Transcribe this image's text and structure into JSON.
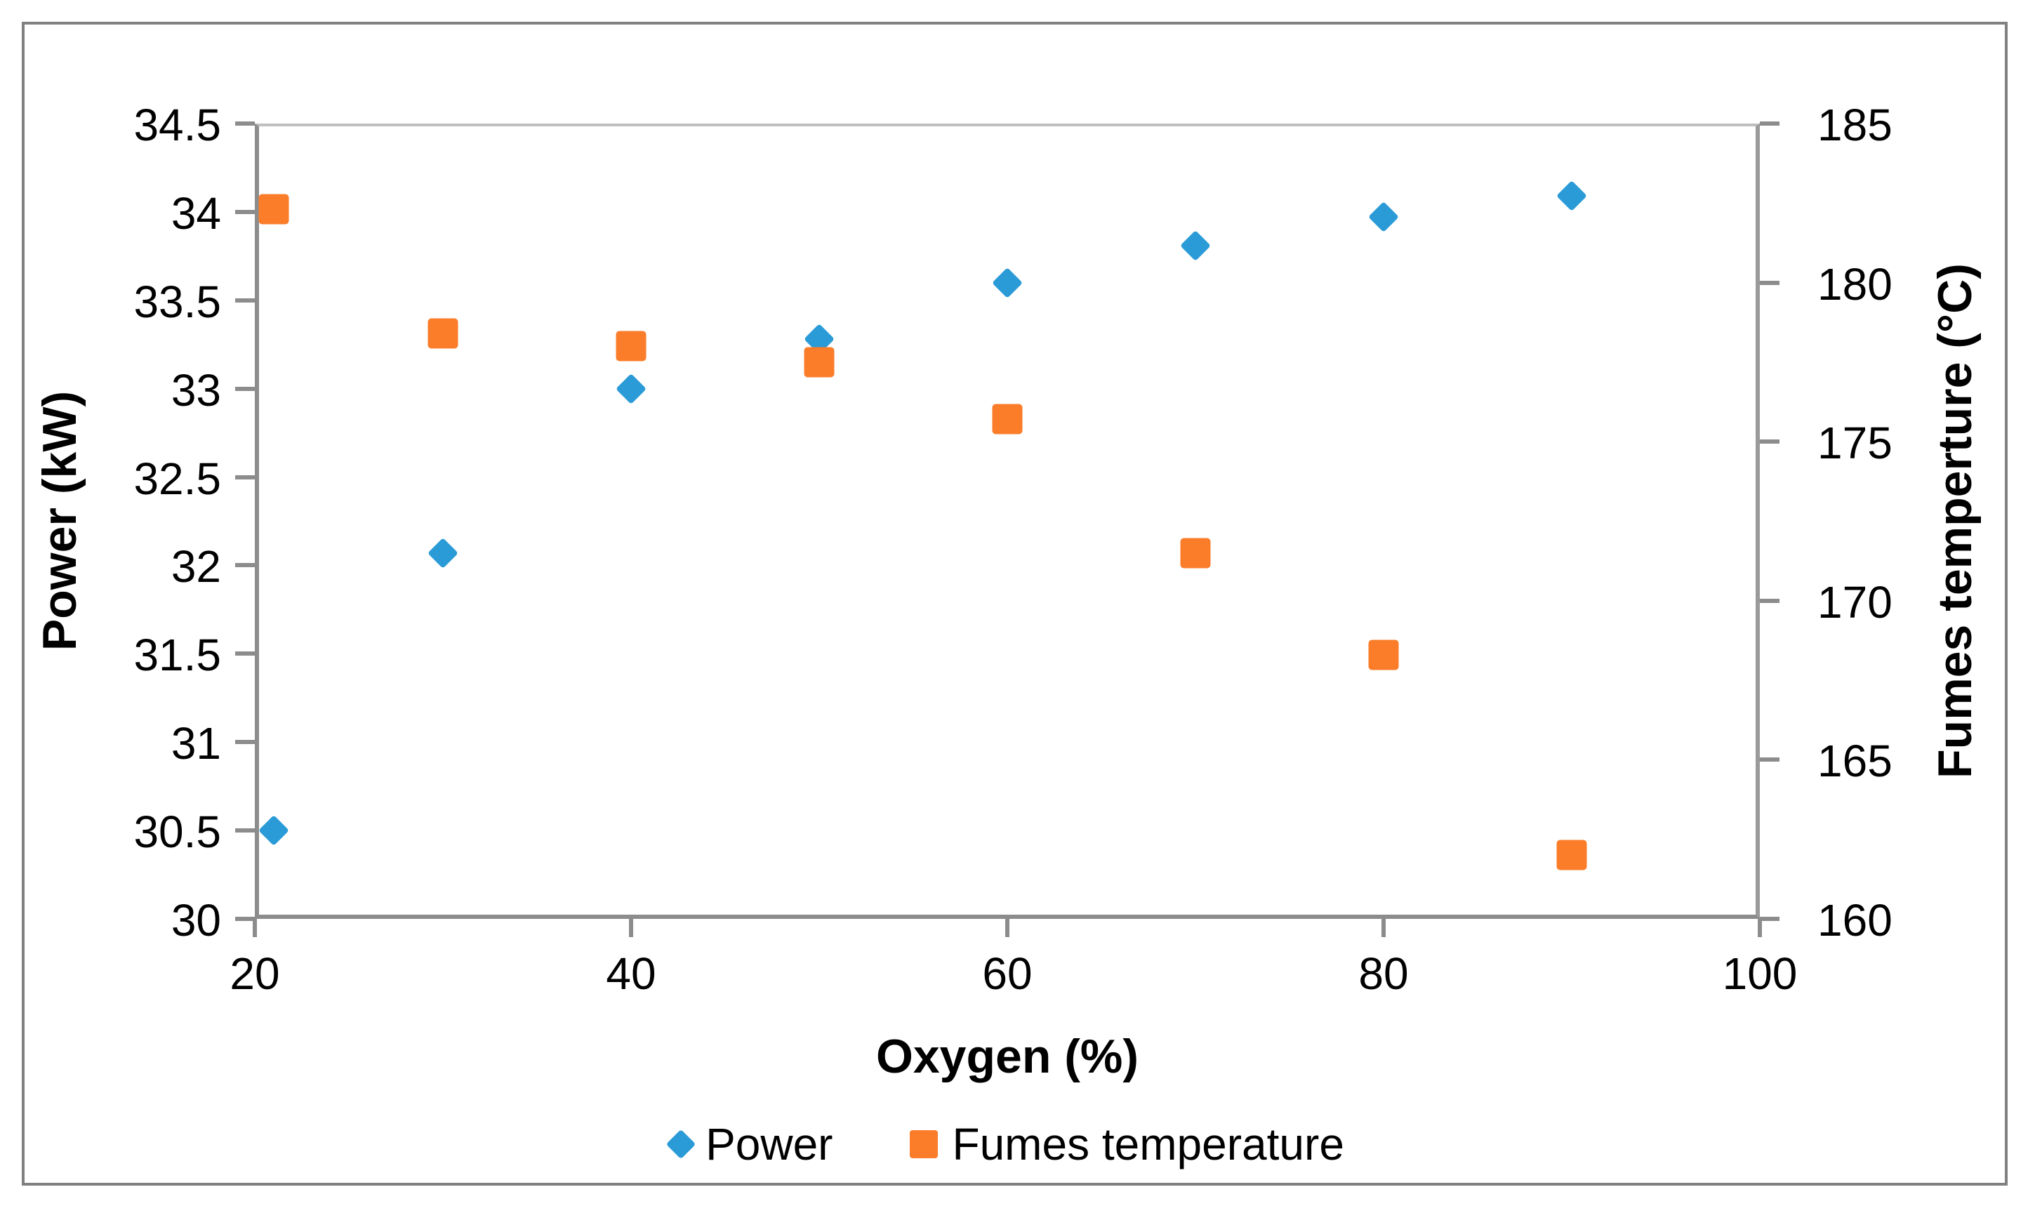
{
  "chart_data": {
    "type": "scatter",
    "title": "",
    "xlabel": "Oxygen (%)",
    "ylabel_left": "Power (kW)",
    "ylabel_right": "Fumes temperture (°C)",
    "xlim": [
      20,
      100
    ],
    "x_ticks": [
      20,
      40,
      60,
      80,
      100
    ],
    "ylim_left": [
      30,
      34.5
    ],
    "y_left_ticks": [
      30,
      30.5,
      31,
      31.5,
      32,
      32.5,
      33,
      33.5,
      34,
      34.5
    ],
    "ylim_right": [
      160,
      185
    ],
    "y_right_ticks": [
      160,
      165,
      170,
      175,
      180,
      185
    ],
    "grid": "off",
    "legend_position": "bottom",
    "series": [
      {
        "name": "Power",
        "marker": "diamond",
        "color": "#2B9BD7",
        "axis": "left",
        "x": [
          21,
          30,
          40,
          50,
          60,
          70,
          80,
          90
        ],
        "y": [
          30.5,
          32.07,
          33.0,
          33.28,
          33.6,
          33.81,
          33.97,
          34.09
        ]
      },
      {
        "name": "Fumes temperature",
        "marker": "square",
        "color": "#FB7D2A",
        "axis": "right",
        "x": [
          21,
          30,
          40,
          50,
          60,
          70,
          80,
          90
        ],
        "y": [
          182.3,
          178.4,
          178.0,
          177.5,
          175.7,
          171.5,
          168.3,
          162.0
        ]
      }
    ],
    "colors": {
      "axis_line": "#8C8C8C",
      "plot_top_line": "#BFBFBF",
      "outer_border": "#808080",
      "text": "#000000"
    }
  }
}
